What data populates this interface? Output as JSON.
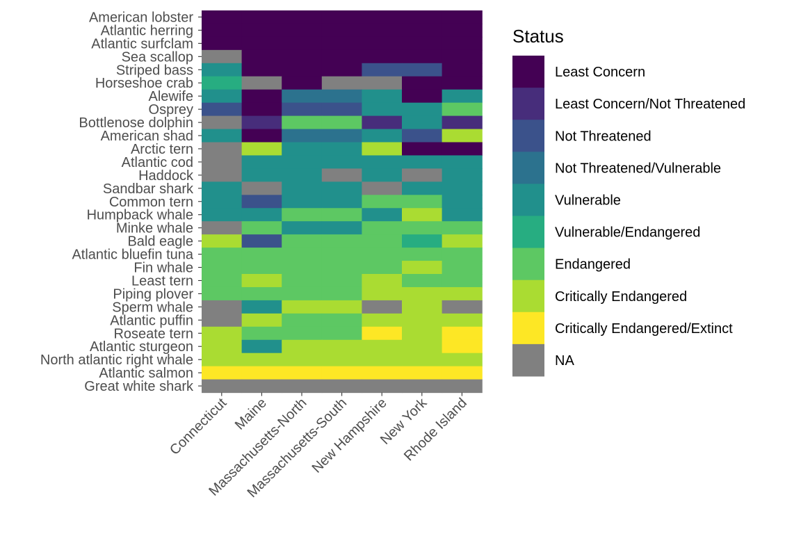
{
  "chart_data": {
    "type": "heatmap",
    "title": "",
    "xlabel": "",
    "ylabel": "",
    "legend_title": "Status",
    "legend_position": "right",
    "grid": false,
    "x": [
      "Connecticut",
      "Maine",
      "Massachusetts-North",
      "Massachusetts-South",
      "New Hampshire",
      "New York",
      "Rhode Island"
    ],
    "y": [
      "American lobster",
      "Atlantic herring",
      "Atlantic surfclam",
      "Sea scallop",
      "Striped bass",
      "Horseshoe crab",
      "Alewife",
      "Osprey",
      "Bottlenose dolphin",
      "American shad",
      "Arctic tern",
      "Atlantic cod",
      "Haddock",
      "Sandbar shark",
      "Common tern",
      "Humpback whale",
      "Minke whale",
      "Bald eagle",
      "Atlantic bluefin tuna",
      "Fin whale",
      "Least tern",
      "Piping plover",
      "Sperm whale",
      "Atlantic puffin",
      "Roseate tern",
      "Atlantic sturgeon",
      "North atlantic right whale",
      "Atlantic salmon",
      "Great white shark"
    ],
    "categories": [
      {
        "label": "Least Concern",
        "color": "#440154"
      },
      {
        "label": "Least Concern/Not Threatened",
        "color": "#472D7B"
      },
      {
        "label": "Not Threatened",
        "color": "#3B528B"
      },
      {
        "label": "Not Threatened/Vulnerable",
        "color": "#2C728E"
      },
      {
        "label": "Vulnerable",
        "color": "#21908C"
      },
      {
        "label": "Vulnerable/Endangered",
        "color": "#27AD81"
      },
      {
        "label": "Endangered",
        "color": "#5DC863"
      },
      {
        "label": "Critically Endangered",
        "color": "#AADC32"
      },
      {
        "label": "Critically Endangered/Extinct",
        "color": "#FDE725"
      },
      {
        "label": "NA",
        "color": "#808080"
      }
    ],
    "values": [
      [
        "Least Concern",
        "Least Concern",
        "Least Concern",
        "Least Concern",
        "Least Concern",
        "Least Concern",
        "Least Concern"
      ],
      [
        "Least Concern",
        "Least Concern",
        "Least Concern",
        "Least Concern",
        "Least Concern",
        "Least Concern",
        "Least Concern"
      ],
      [
        "Least Concern",
        "Least Concern",
        "Least Concern",
        "Least Concern",
        "Least Concern",
        "Least Concern",
        "Least Concern"
      ],
      [
        "NA",
        "Least Concern",
        "Least Concern",
        "Least Concern",
        "Least Concern",
        "Least Concern",
        "Least Concern"
      ],
      [
        "Vulnerable",
        "Least Concern",
        "Least Concern",
        "Least Concern",
        "Not Threatened",
        "Not Threatened",
        "Least Concern"
      ],
      [
        "Vulnerable/Endangered",
        "NA",
        "Least Concern",
        "NA",
        "NA",
        "Least Concern",
        "Least Concern"
      ],
      [
        "Vulnerable",
        "Least Concern",
        "Not Threatened/Vulnerable",
        "Not Threatened/Vulnerable",
        "Vulnerable",
        "Least Concern",
        "Vulnerable"
      ],
      [
        "Not Threatened",
        "Least Concern",
        "Not Threatened",
        "Not Threatened",
        "Vulnerable",
        "Vulnerable",
        "Endangered"
      ],
      [
        "NA",
        "Least Concern/Not Threatened",
        "Endangered",
        "Endangered",
        "Least Concern/Not Threatened",
        "Vulnerable",
        "Least Concern/Not Threatened"
      ],
      [
        "Vulnerable",
        "Least Concern",
        "Not Threatened/Vulnerable",
        "Not Threatened/Vulnerable",
        "Vulnerable",
        "Not Threatened",
        "Critically Endangered"
      ],
      [
        "NA",
        "Critically Endangered",
        "Vulnerable",
        "Vulnerable",
        "Critically Endangered",
        "Least Concern",
        "Least Concern"
      ],
      [
        "NA",
        "Vulnerable",
        "Vulnerable",
        "Vulnerable",
        "Vulnerable",
        "Vulnerable",
        "Vulnerable"
      ],
      [
        "NA",
        "Vulnerable",
        "Vulnerable",
        "NA",
        "Vulnerable",
        "NA",
        "Vulnerable"
      ],
      [
        "Vulnerable",
        "NA",
        "Vulnerable",
        "Vulnerable",
        "NA",
        "Vulnerable",
        "Vulnerable"
      ],
      [
        "Vulnerable",
        "Not Threatened",
        "Vulnerable",
        "Vulnerable",
        "Endangered",
        "Endangered",
        "Vulnerable"
      ],
      [
        "Vulnerable",
        "Vulnerable",
        "Endangered",
        "Endangered",
        "Vulnerable",
        "Critically Endangered",
        "Vulnerable"
      ],
      [
        "NA",
        "Endangered",
        "Vulnerable",
        "Vulnerable",
        "Endangered",
        "Endangered",
        "Endangered"
      ],
      [
        "Critically Endangered",
        "Not Threatened",
        "Endangered",
        "Endangered",
        "Endangered",
        "Vulnerable/Endangered",
        "Critically Endangered"
      ],
      [
        "Endangered",
        "Endangered",
        "Endangered",
        "Endangered",
        "Endangered",
        "Endangered",
        "Endangered"
      ],
      [
        "Endangered",
        "Endangered",
        "Endangered",
        "Endangered",
        "Endangered",
        "Critically Endangered",
        "Endangered"
      ],
      [
        "Endangered",
        "Critically Endangered",
        "Endangered",
        "Endangered",
        "Critically Endangered",
        "Endangered",
        "Endangered"
      ],
      [
        "Endangered",
        "Endangered",
        "Endangered",
        "Endangered",
        "Critically Endangered",
        "Critically Endangered",
        "Critically Endangered"
      ],
      [
        "NA",
        "Vulnerable",
        "Critically Endangered",
        "Critically Endangered",
        "NA",
        "Critically Endangered",
        "NA"
      ],
      [
        "NA",
        "Critically Endangered",
        "Endangered",
        "Endangered",
        "Critically Endangered",
        "Critically Endangered",
        "Critically Endangered"
      ],
      [
        "Critically Endangered",
        "Endangered",
        "Endangered",
        "Endangered",
        "Critically Endangered/Extinct",
        "Critically Endangered",
        "Critically Endangered/Extinct"
      ],
      [
        "Critically Endangered",
        "Vulnerable",
        "Critically Endangered",
        "Critically Endangered",
        "Critically Endangered",
        "Critically Endangered",
        "Critically Endangered/Extinct"
      ],
      [
        "Critically Endangered",
        "Critically Endangered",
        "Critically Endangered",
        "Critically Endangered",
        "Critically Endangered",
        "Critically Endangered",
        "Critically Endangered"
      ],
      [
        "Critically Endangered/Extinct",
        "Critically Endangered/Extinct",
        "Critically Endangered/Extinct",
        "Critically Endangered/Extinct",
        "Critically Endangered/Extinct",
        "Critically Endangered/Extinct",
        "Critically Endangered/Extinct"
      ],
      [
        "NA",
        "NA",
        "NA",
        "NA",
        "NA",
        "NA",
        "NA"
      ]
    ]
  }
}
